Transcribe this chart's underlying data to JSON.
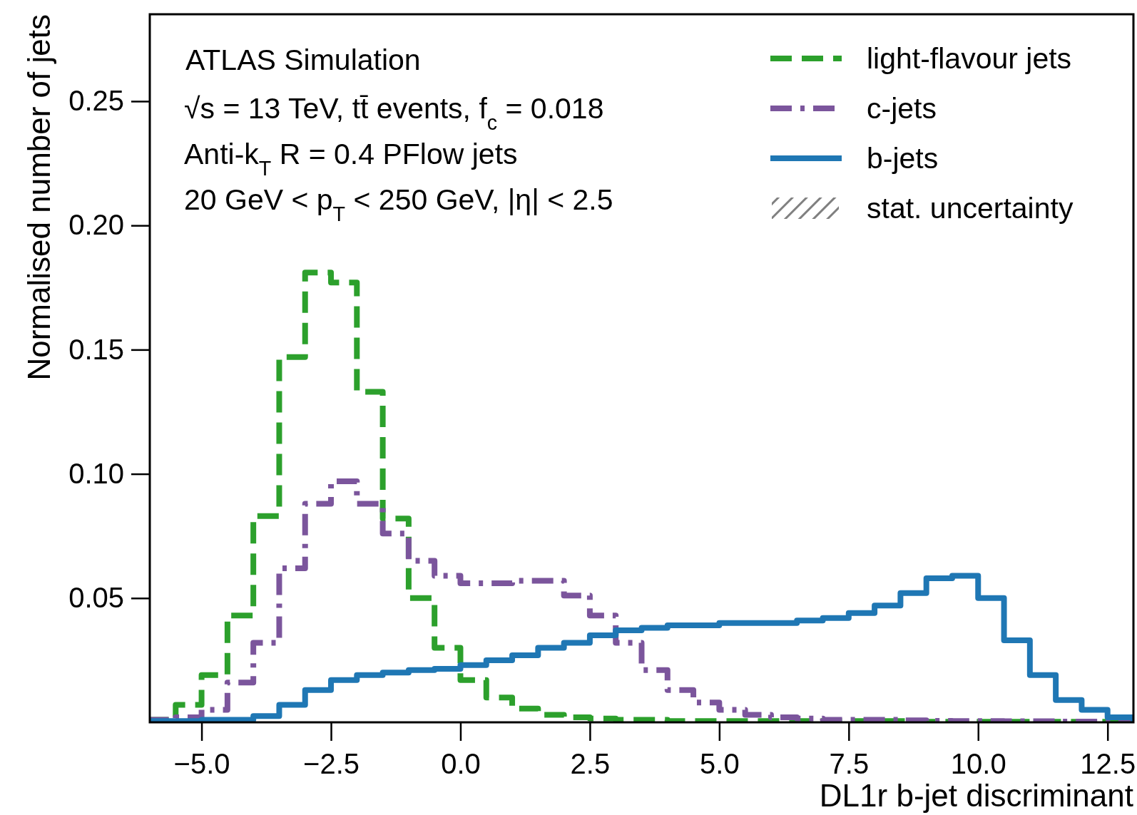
{
  "chart_data": {
    "type": "histogram",
    "title": "ATLAS Simulation",
    "xlabel": "DL1r b-jet discriminant",
    "ylabel": "Normalised number of jets",
    "annotations": [
      "√s = 13 TeV, tt̄ events, f$_{c}$ = 0.018",
      "Anti-k$_{T}$ R = 0.4 PFlow jets",
      "20 GeV < p$_{T}$ < 250 GeV, |η| < 2.5",
      "stat. uncertainty"
    ],
    "bins": [
      -6,
      -5.5,
      -5,
      -4.5,
      -4,
      -3.5,
      -3,
      -2.5,
      -2,
      -1.5,
      -1,
      -0.5,
      0,
      0.5,
      1,
      1.5,
      2,
      2.5,
      3,
      3.5,
      4,
      4.5,
      5,
      5.5,
      6,
      6.5,
      7,
      7.5,
      8,
      8.5,
      9,
      9.5,
      10,
      10.5,
      11,
      11.5,
      12,
      12.5,
      13
    ],
    "series": [
      {
        "name": "light-flavour jets",
        "color": "#2ca02c",
        "line_style": "dashed",
        "values": [
          0.001,
          0.007,
          0.019,
          0.043,
          0.083,
          0.147,
          0.181,
          0.177,
          0.133,
          0.082,
          0.05,
          0.03,
          0.017,
          0.01,
          0.0055,
          0.003,
          0.002,
          0.0015,
          0.001,
          0.001,
          0.0005,
          0.0005,
          0.0005,
          0.0005,
          0.0005,
          0.0005,
          0.0005,
          0.0005,
          0.0005,
          0.0005,
          0.0002,
          0.0002,
          0.0002,
          0.0002,
          0.0002,
          0.0002,
          0.0002,
          0.0002
        ]
      },
      {
        "name": "c-jets",
        "color": "#7b559c",
        "line_style": "dashdot",
        "values": [
          0.001,
          0.002,
          0.005,
          0.016,
          0.032,
          0.062,
          0.088,
          0.097,
          0.088,
          0.076,
          0.065,
          0.059,
          0.056,
          0.056,
          0.057,
          0.057,
          0.051,
          0.043,
          0.032,
          0.021,
          0.013,
          0.008,
          0.005,
          0.003,
          0.002,
          0.0015,
          0.001,
          0.001,
          0.001,
          0.0008,
          0.0006,
          0.0005,
          0.0005,
          0.0004,
          0.0004,
          0.0003,
          0.0003,
          0.0002
        ]
      },
      {
        "name": "b-jets",
        "color": "#1f77b4",
        "line_style": "solid",
        "values": [
          0.0005,
          0.0005,
          0.001,
          0.001,
          0.0025,
          0.007,
          0.013,
          0.017,
          0.019,
          0.02,
          0.021,
          0.0215,
          0.023,
          0.025,
          0.027,
          0.03,
          0.032,
          0.035,
          0.037,
          0.038,
          0.039,
          0.039,
          0.04,
          0.04,
          0.04,
          0.041,
          0.042,
          0.044,
          0.047,
          0.052,
          0.058,
          0.059,
          0.05,
          0.033,
          0.019,
          0.009,
          0.005,
          0.002
        ]
      }
    ],
    "xlim": [
      -6,
      13
    ],
    "ylim": [
      0,
      0.285
    ],
    "xticks": [
      {
        "value": -5,
        "label": "−5.0"
      },
      {
        "value": -2.5,
        "label": "−2.5"
      },
      {
        "value": 0,
        "label": "0.0"
      },
      {
        "value": 2.5,
        "label": "2.5"
      },
      {
        "value": 5,
        "label": "5.0"
      },
      {
        "value": 7.5,
        "label": "7.5"
      },
      {
        "value": 10,
        "label": "10.0"
      },
      {
        "value": 12.5,
        "label": "12.5"
      }
    ],
    "yticks": [
      {
        "value": 0.05,
        "label": "0.05"
      },
      {
        "value": 0.1,
        "label": "0.10"
      },
      {
        "value": 0.15,
        "label": "0.15"
      },
      {
        "value": 0.2,
        "label": "0.20"
      },
      {
        "value": 0.25,
        "label": "0.25"
      }
    ],
    "legend": "top right",
    "grid": false
  }
}
